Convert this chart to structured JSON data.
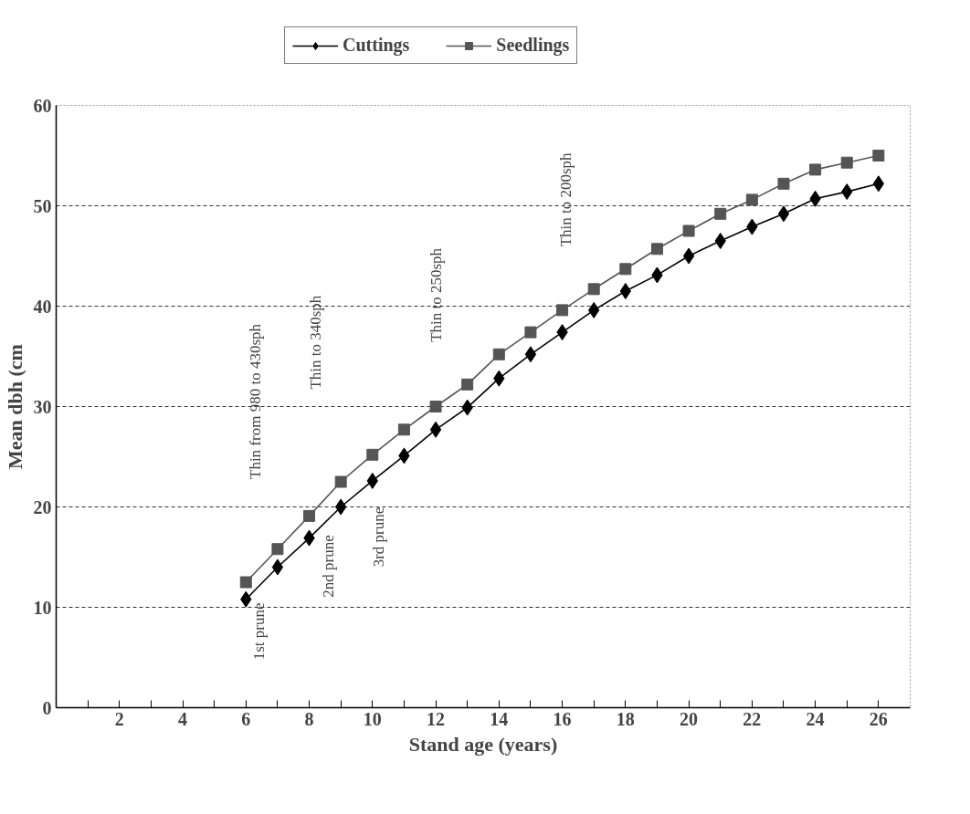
{
  "chart_data": {
    "type": "line",
    "xlabel": "Stand age (years)",
    "ylabel": "Mean dbh (cm",
    "x": [
      6,
      7,
      8,
      9,
      10,
      11,
      12,
      13,
      14,
      15,
      16,
      17,
      18,
      19,
      20,
      21,
      22,
      23,
      24,
      25,
      26
    ],
    "series": [
      {
        "name": "Cuttings",
        "color": "#000000",
        "marker": "diamond",
        "values": [
          10.8,
          14.0,
          16.9,
          20.0,
          22.6,
          25.1,
          27.7,
          29.9,
          32.8,
          35.2,
          37.4,
          39.6,
          41.5,
          43.1,
          45.0,
          46.5,
          47.9,
          49.2,
          50.7,
          51.4,
          52.2
        ]
      },
      {
        "name": "Seedlings",
        "color": "#555555",
        "marker": "square",
        "values": [
          12.5,
          15.8,
          19.1,
          22.5,
          25.2,
          27.7,
          30.0,
          32.2,
          35.2,
          37.4,
          39.6,
          41.7,
          43.7,
          45.7,
          47.5,
          49.2,
          50.6,
          52.2,
          53.6,
          54.3,
          55.0
        ]
      }
    ],
    "xlim": [
      0,
      27
    ],
    "xticks": [
      {
        "value": 1,
        "label": null
      },
      2,
      {
        "value": 3,
        "label": null
      },
      4,
      {
        "value": 5,
        "label": null
      },
      6,
      {
        "value": 7,
        "label": null
      },
      8,
      {
        "value": 9,
        "label": null
      },
      10,
      {
        "value": 11,
        "label": null
      },
      12,
      {
        "value": 13,
        "label": null
      },
      14,
      {
        "value": 15,
        "label": null
      },
      16,
      {
        "value": 17,
        "label": null
      },
      18,
      {
        "value": 19,
        "label": null
      },
      20,
      {
        "value": 21,
        "label": null
      },
      22,
      {
        "value": 23,
        "label": null
      },
      24,
      {
        "value": 25,
        "label": null
      },
      26
    ],
    "ylim": [
      0,
      60
    ],
    "yticks": [
      0,
      10,
      20,
      30,
      40,
      50,
      60
    ],
    "grid": "y",
    "legend": "top",
    "line_style": "solid",
    "annotations": [
      "Thin from 980 to 430sph",
      "1st prune",
      "Thin to 340sph",
      "2nd prune",
      "3rd prune",
      "Thin to 250sph",
      "Thin to 200sph"
    ]
  }
}
